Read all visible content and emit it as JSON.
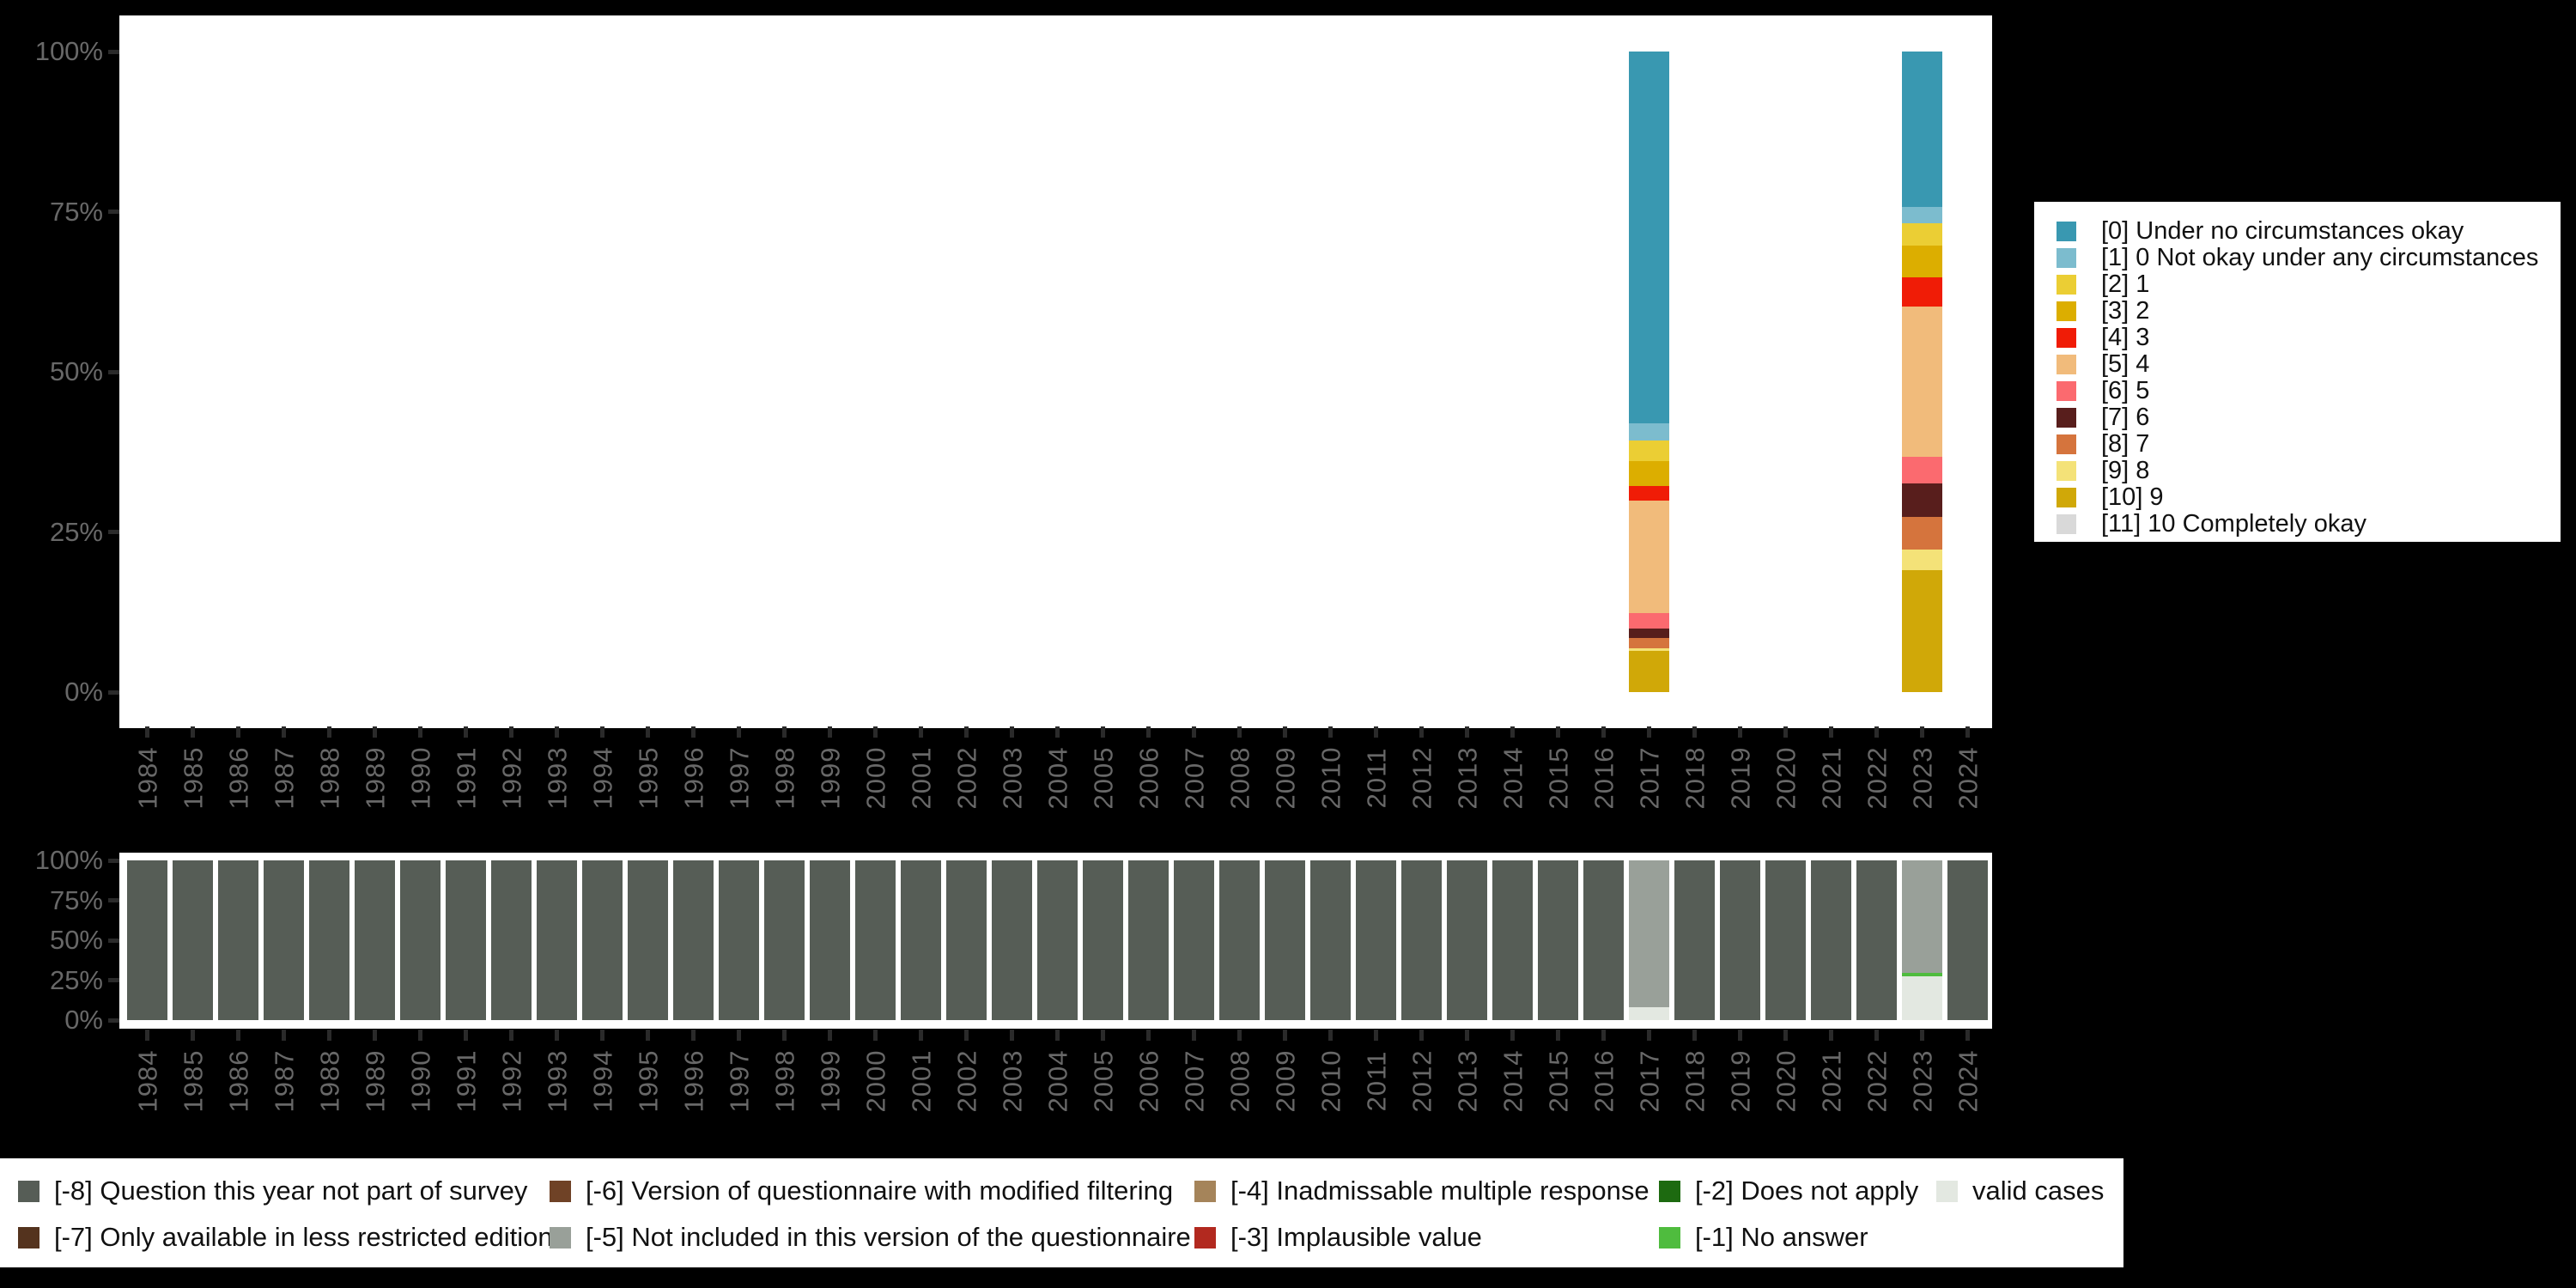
{
  "page": {
    "background": "#000000",
    "plot_background": "#ffffff"
  },
  "chart_data": [
    {
      "name": "answer-distribution",
      "type": "bar",
      "stacked": true,
      "unit": "percent",
      "ylim": [
        0,
        100
      ],
      "grid": false,
      "legend_position": "right",
      "y_ticks": [
        "100%",
        "75%",
        "50%",
        "25%",
        "0%"
      ],
      "x": [
        "1984",
        "1985",
        "1986",
        "1987",
        "1988",
        "1989",
        "1990",
        "1991",
        "1992",
        "1993",
        "1994",
        "1995",
        "1996",
        "1997",
        "1998",
        "1999",
        "2000",
        "2001",
        "2002",
        "2003",
        "2004",
        "2005",
        "2006",
        "2007",
        "2008",
        "2009",
        "2010",
        "2011",
        "2012",
        "2013",
        "2014",
        "2015",
        "2016",
        "2017",
        "2018",
        "2019",
        "2020",
        "2021",
        "2022",
        "2023",
        "2024"
      ],
      "series": [
        {
          "label": "[0] Under no circumstances okay",
          "color": "#3998b1",
          "values": {
            "2017": 58.1,
            "2023": 24.3
          }
        },
        {
          "label": "[1] 0 Not okay under any circumstances",
          "color": "#7cbcce",
          "values": {
            "2017": 2.6,
            "2023": 2.5
          }
        },
        {
          "label": "[2] 1",
          "color": "#ebce34",
          "values": {
            "2017": 3.2,
            "2023": 3.5
          }
        },
        {
          "label": "[3] 2",
          "color": "#dcae00",
          "values": {
            "2017": 3.9,
            "2023": 5.0
          }
        },
        {
          "label": "[4] 3",
          "color": "#f01c06",
          "values": {
            "2017": 2.3,
            "2023": 4.5
          }
        },
        {
          "label": "[5] 4",
          "color": "#f1bb7b",
          "values": {
            "2017": 17.6,
            "2023": 23.5
          }
        },
        {
          "label": "[6] 5",
          "color": "#fb6a6f",
          "values": {
            "2017": 2.4,
            "2023": 4.1
          }
        },
        {
          "label": "[7] 6",
          "color": "#581e1c",
          "values": {
            "2017": 1.5,
            "2023": 5.3
          }
        },
        {
          "label": "[8] 7",
          "color": "#d5743d",
          "values": {
            "2017": 1.5,
            "2023": 5.0
          }
        },
        {
          "label": "[9] 8",
          "color": "#f4e278",
          "values": {
            "2017": 0.5,
            "2023": 3.3
          }
        },
        {
          "label": "[10] 9",
          "color": "#d0a808",
          "values": {
            "2017": 6.4,
            "2023": 19.0
          }
        },
        {
          "label": "[11] 10 Completely okay",
          "color": "#d9d9d9",
          "values": {}
        }
      ]
    },
    {
      "name": "missing-values",
      "type": "bar",
      "stacked": true,
      "unit": "percent",
      "ylim": [
        0,
        100
      ],
      "grid": false,
      "legend_position": "bottom",
      "y_ticks": [
        "100%",
        "75%",
        "50%",
        "25%",
        "0%"
      ],
      "x": [
        "1984",
        "1985",
        "1986",
        "1987",
        "1988",
        "1989",
        "1990",
        "1991",
        "1992",
        "1993",
        "1994",
        "1995",
        "1996",
        "1997",
        "1998",
        "1999",
        "2000",
        "2001",
        "2002",
        "2003",
        "2004",
        "2005",
        "2006",
        "2007",
        "2008",
        "2009",
        "2010",
        "2011",
        "2012",
        "2013",
        "2014",
        "2015",
        "2016",
        "2017",
        "2018",
        "2019",
        "2020",
        "2021",
        "2022",
        "2023",
        "2024"
      ],
      "series": [
        {
          "label": "[-8] Question this year not part of survey",
          "color": "#565d56",
          "values": {
            "default": 100,
            "2017": 0,
            "2023": 0
          }
        },
        {
          "label": "[-7] Only available in less restricted edition",
          "color": "#54331e",
          "values": {}
        },
        {
          "label": "[-6] Version of questionnaire with modified filtering",
          "color": "#6f4226",
          "values": {}
        },
        {
          "label": "[-5] Not included in this version of the questionnaire",
          "color": "#99a099",
          "values": {
            "2017": 92.0,
            "2023": 70.5
          }
        },
        {
          "label": "[-4] Inadmissable multiple response",
          "color": "#a5845a",
          "values": {}
        },
        {
          "label": "[-3] Implausible value",
          "color": "#b2291f",
          "values": {}
        },
        {
          "label": "[-2] Does not apply",
          "color": "#1d6a10",
          "values": {}
        },
        {
          "label": "[-1] No answer",
          "color": "#4fbc3e",
          "values": {
            "2023": 2.0
          }
        },
        {
          "label": "valid cases",
          "color": "#e3e8e1",
          "values": {
            "2017": 8.0,
            "2023": 27.5
          }
        }
      ]
    }
  ]
}
